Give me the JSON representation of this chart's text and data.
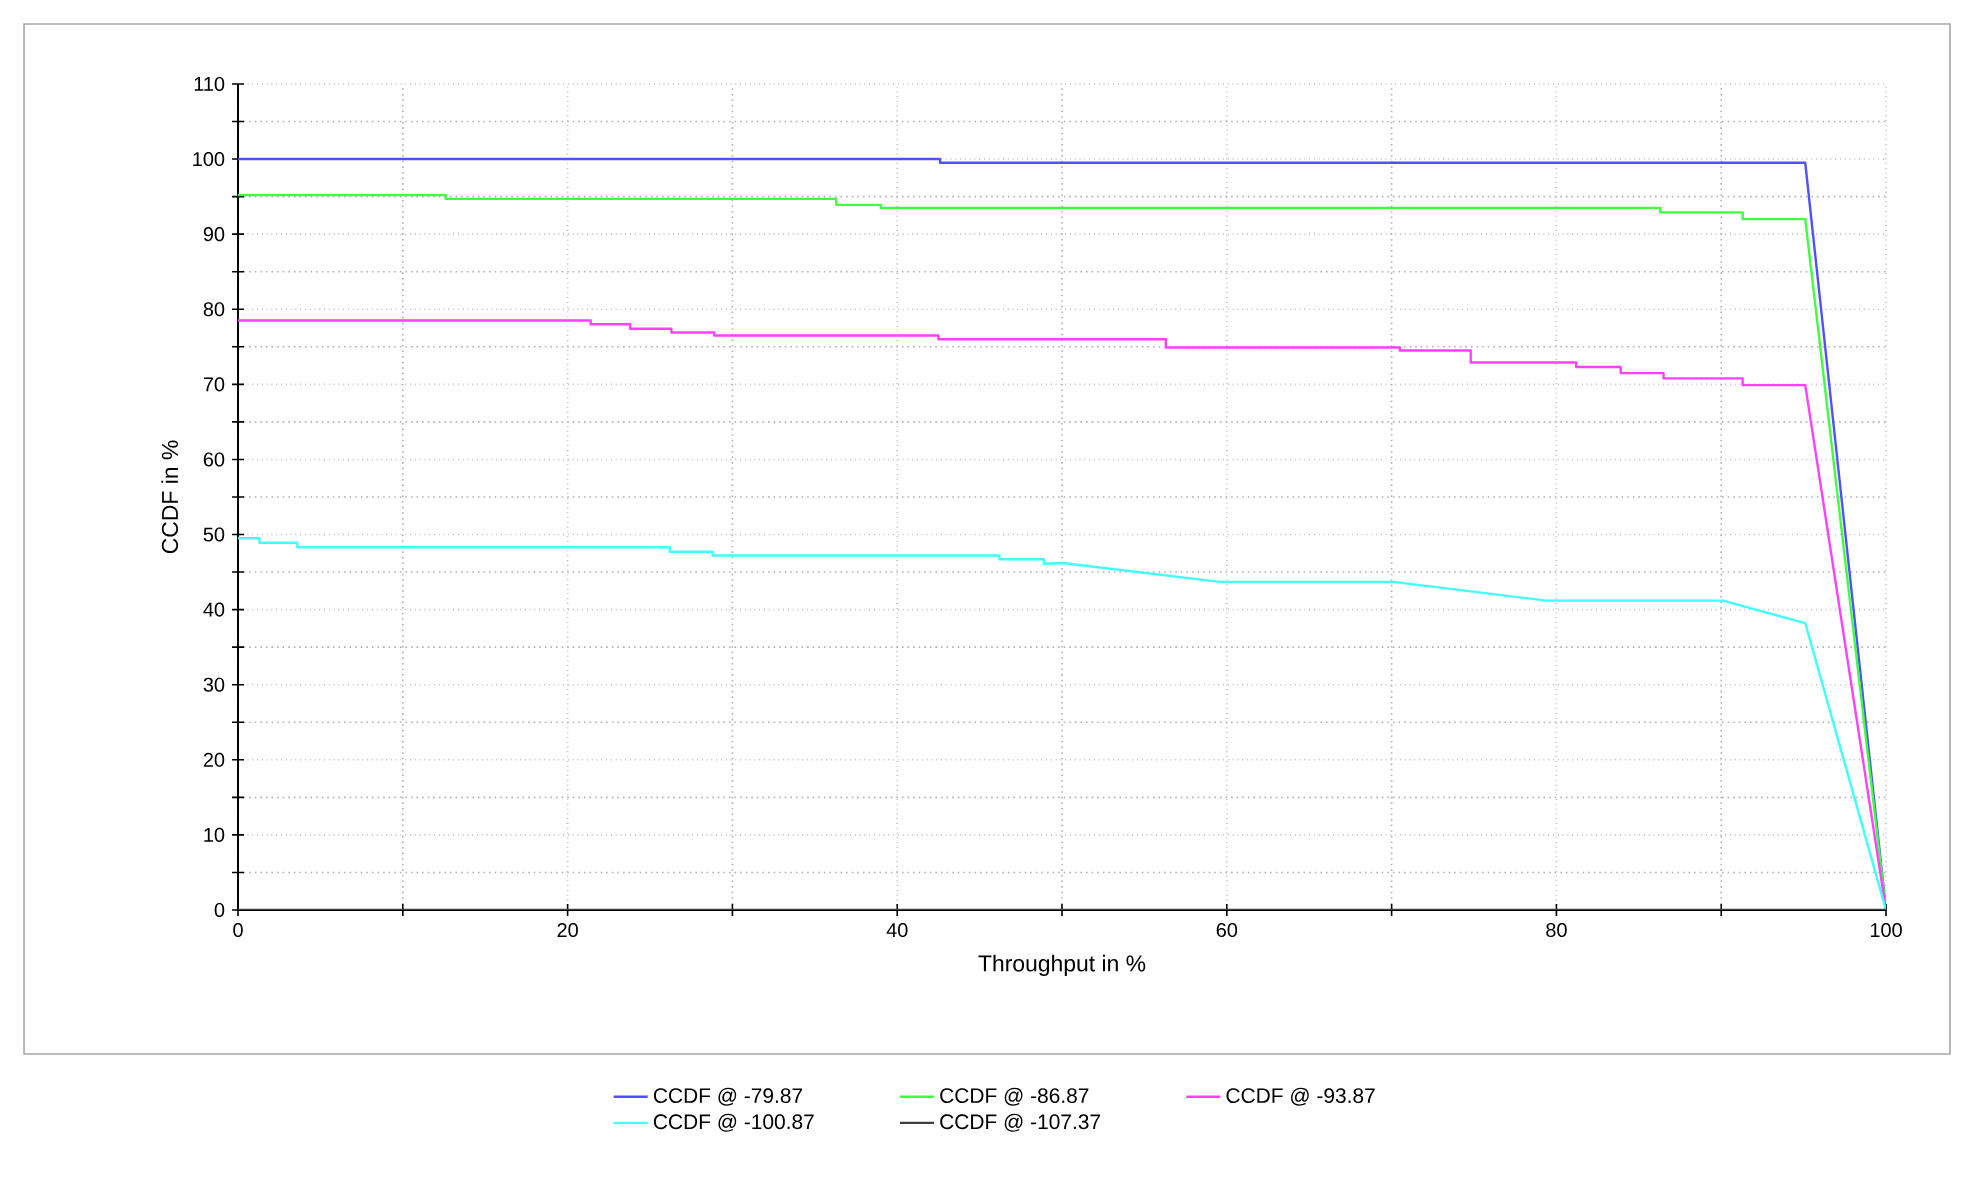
{
  "chart_data": {
    "type": "line",
    "xlabel": "Throughput in %",
    "ylabel": "CCDF in %",
    "xlim": [
      0,
      100
    ],
    "ylim": [
      0,
      110
    ],
    "xticks": [
      0,
      20,
      40,
      60,
      80,
      100
    ],
    "yticks": [
      0,
      10,
      20,
      30,
      40,
      50,
      60,
      70,
      80,
      90,
      100,
      110
    ],
    "grid": true,
    "legend": "bottom",
    "marker": "none",
    "line_style": "solid",
    "series": [
      {
        "name": "CCDF @ -79.87",
        "color": "#5050ff",
        "x": [
          0,
          42.6,
          42.6,
          95.1,
          100
        ],
        "values": [
          100,
          100,
          99.5,
          99.5,
          0
        ]
      },
      {
        "name": "CCDF @ -86.87",
        "color": "#40ff40",
        "x": [
          0,
          12.6,
          12.6,
          36.3,
          36.3,
          39,
          39,
          86.3,
          86.3,
          91.3,
          91.3,
          95.1,
          100
        ],
        "values": [
          95.2,
          95.2,
          94.7,
          94.7,
          93.9,
          93.9,
          93.5,
          93.5,
          92.9,
          92.9,
          92.0,
          92.0,
          0
        ]
      },
      {
        "name": "CCDF @ -93.87",
        "color": "#ff40ff",
        "x": [
          0,
          21.4,
          21.4,
          23.8,
          23.8,
          26.3,
          26.3,
          28.9,
          28.9,
          42.5,
          42.5,
          56.3,
          56.3,
          70.5,
          70.5,
          74.8,
          74.8,
          81.2,
          81.2,
          83.9,
          83.9,
          86.5,
          86.5,
          91.3,
          91.3,
          95.1,
          100
        ],
        "values": [
          78.5,
          78.5,
          78.0,
          78.0,
          77.4,
          77.4,
          76.9,
          76.9,
          76.5,
          76.5,
          76.0,
          76.0,
          74.9,
          74.9,
          74.5,
          74.5,
          72.9,
          72.9,
          72.3,
          72.3,
          71.5,
          71.5,
          70.8,
          70.8,
          69.9,
          69.9,
          0
        ]
      },
      {
        "name": "CCDF @ -100.87",
        "color": "#40ffff",
        "x": [
          0,
          1.3,
          1.3,
          3.6,
          3.6,
          26.2,
          26.2,
          28.8,
          28.8,
          46.2,
          46.2,
          48.9,
          48.9,
          50,
          59.6,
          70.1,
          79.4,
          90.1,
          95.1,
          100
        ],
        "values": [
          49.5,
          49.5,
          48.9,
          48.9,
          48.3,
          48.3,
          47.7,
          47.7,
          47.2,
          47.2,
          46.7,
          46.7,
          46.1,
          46.2,
          43.7,
          43.7,
          41.2,
          41.2,
          38.2,
          0
        ]
      },
      {
        "name": "CCDF @ -107.37",
        "color": "#404040",
        "x": [
          0,
          100
        ],
        "values": [
          0,
          0
        ]
      }
    ]
  }
}
